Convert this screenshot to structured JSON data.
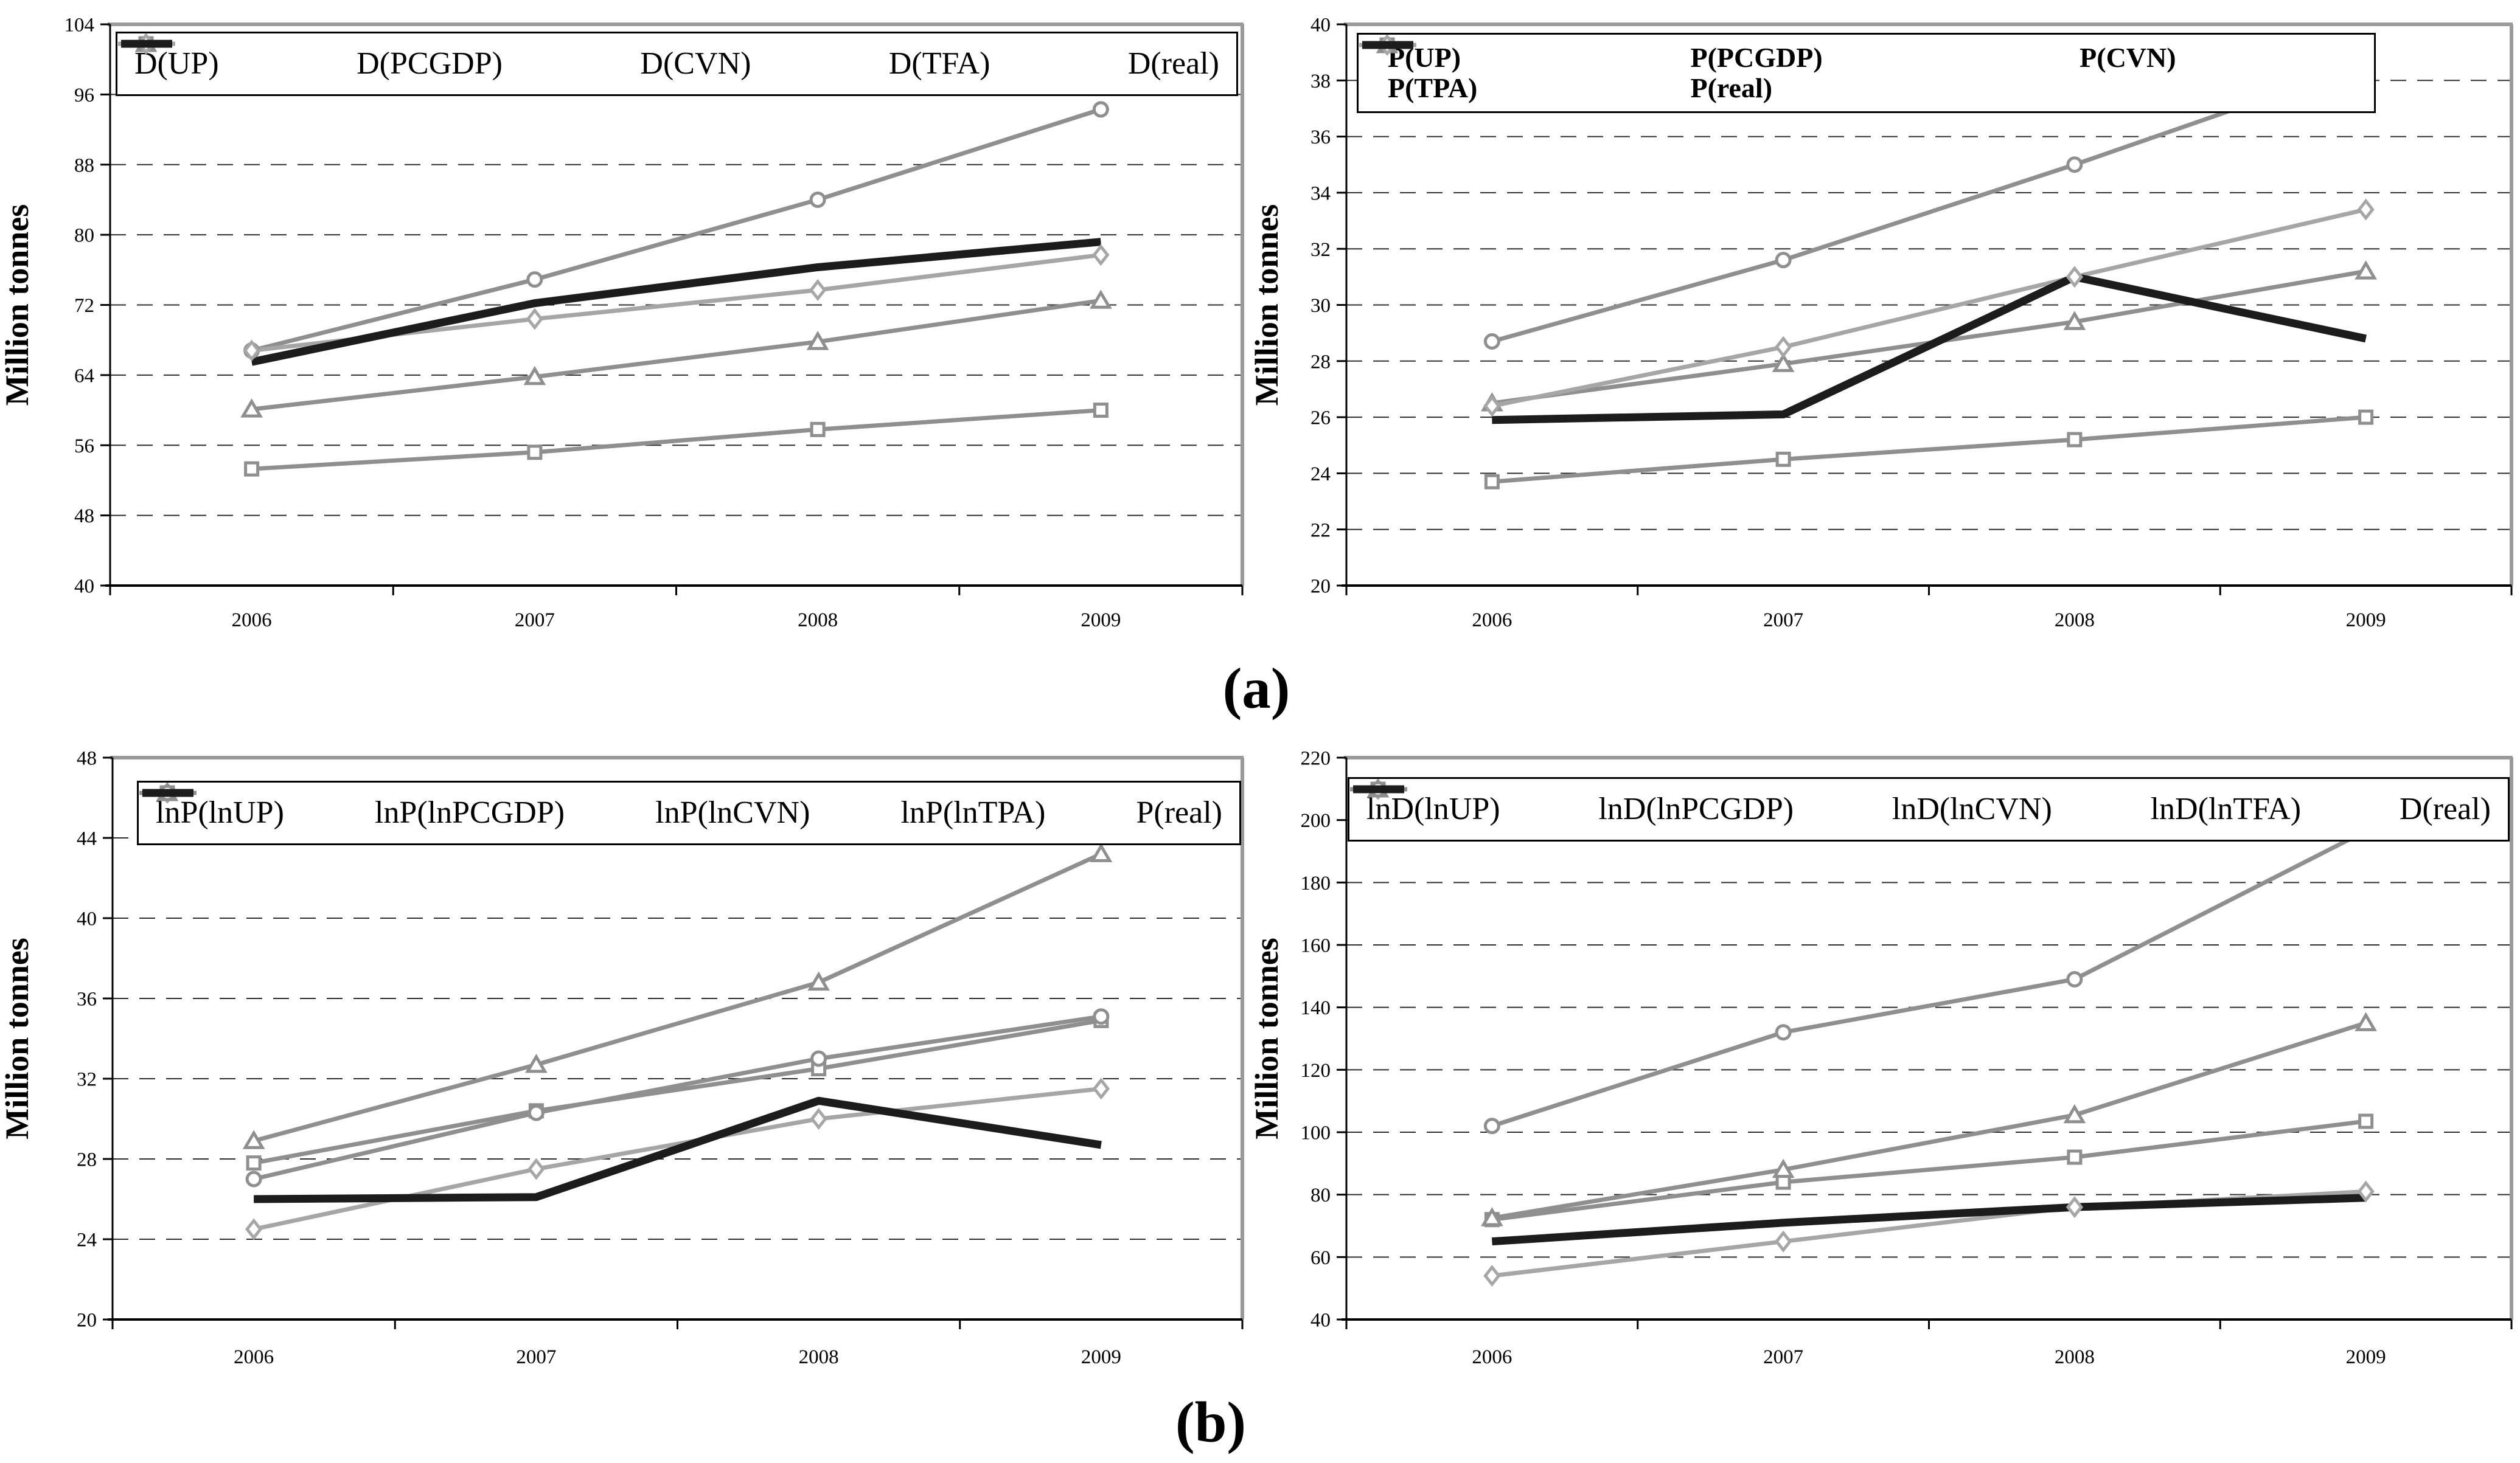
{
  "figure": {
    "caption_a": "(a)",
    "caption_b": "(b)"
  },
  "colors": {
    "series_gray": "#8f8f8f",
    "series_light_gray": "#a6a6a6",
    "series_black": "#1c1c1c",
    "gridline": "#2e2e2e",
    "axis": "#000000",
    "plot_border": "#9a9a9a",
    "legend_border": "#000000",
    "background": "#ffffff"
  },
  "chart_data": [
    {
      "id": "demand-models",
      "type": "line",
      "title": "",
      "xlabel": "",
      "ylabel": "Million tonnes",
      "x": [
        "2006",
        "2007",
        "2008",
        "2009"
      ],
      "ylim": [
        40,
        104
      ],
      "ystep": 8,
      "yticks": [
        104,
        96,
        88,
        80,
        72,
        64,
        56,
        48,
        40
      ],
      "grid": "horizontal-dashed",
      "legend_position": "top-inside",
      "legend_columns": 5,
      "legend_bold": false,
      "series": [
        {
          "name": "D(UP)",
          "marker": "square",
          "color": "#8f8f8f",
          "width": 7,
          "values": [
            53.3,
            55.2,
            57.8,
            60.0
          ]
        },
        {
          "name": "D(PCGDP)",
          "marker": "triangle",
          "color": "#8f8f8f",
          "width": 7,
          "values": [
            60.1,
            63.8,
            67.8,
            72.5
          ]
        },
        {
          "name": "D(CVN)",
          "marker": "circle",
          "color": "#8f8f8f",
          "width": 7,
          "values": [
            66.8,
            74.9,
            84.0,
            94.3
          ]
        },
        {
          "name": "D(TFA)",
          "marker": "diamond",
          "color": "#a6a6a6",
          "width": 7,
          "values": [
            66.8,
            70.4,
            73.7,
            77.7
          ]
        },
        {
          "name": "D(real)",
          "marker": "none",
          "color": "#1c1c1c",
          "width": 13,
          "values": [
            65.5,
            72.2,
            76.3,
            79.2
          ]
        }
      ]
    },
    {
      "id": "production-models",
      "type": "line",
      "title": "",
      "xlabel": "",
      "ylabel": "Million tonnes",
      "x": [
        "2006",
        "2007",
        "2008",
        "2009"
      ],
      "ylim": [
        20,
        40
      ],
      "ystep": 2,
      "yticks": [
        40,
        38,
        36,
        34,
        32,
        30,
        28,
        26,
        24,
        22,
        20
      ],
      "grid": "horizontal-dashed",
      "legend_position": "top-inside",
      "legend_columns": 3,
      "legend_bold": true,
      "series": [
        {
          "name": "P(UP)",
          "marker": "square",
          "color": "#8f8f8f",
          "width": 7,
          "values": [
            23.7,
            24.5,
            25.2,
            26.0
          ]
        },
        {
          "name": "P(PCGDP)",
          "marker": "triangle",
          "color": "#8f8f8f",
          "width": 7,
          "values": [
            26.5,
            27.9,
            29.4,
            31.2
          ]
        },
        {
          "name": "P(CVN)",
          "marker": "circle",
          "color": "#8f8f8f",
          "width": 7,
          "values": [
            28.7,
            31.6,
            35.0,
            38.6
          ]
        },
        {
          "name": "P(TPA)",
          "marker": "diamond",
          "color": "#a6a6a6",
          "width": 7,
          "values": [
            26.4,
            28.5,
            31.0,
            33.4
          ]
        },
        {
          "name": "P(real)",
          "marker": "none",
          "color": "#1c1c1c",
          "width": 13,
          "values": [
            25.9,
            26.1,
            31.0,
            28.8
          ]
        }
      ]
    },
    {
      "id": "lnp-models",
      "type": "line",
      "title": "",
      "xlabel": "",
      "ylabel": "Million tonnes",
      "x": [
        "2006",
        "2007",
        "2008",
        "2009"
      ],
      "ylim": [
        20,
        48
      ],
      "ystep": 4,
      "yticks": [
        48,
        44,
        40,
        36,
        32,
        28,
        24,
        20
      ],
      "grid": "horizontal-dashed",
      "legend_position": "top-inside",
      "legend_columns": 5,
      "legend_bold": false,
      "series": [
        {
          "name": "lnP(lnUP)",
          "marker": "square",
          "color": "#8f8f8f",
          "width": 7,
          "values": [
            27.8,
            30.4,
            32.5,
            34.9
          ]
        },
        {
          "name": "lnP(lnPCGDP)",
          "marker": "diamond",
          "color": "#a6a6a6",
          "width": 7,
          "values": [
            24.5,
            27.5,
            30.0,
            31.5
          ]
        },
        {
          "name": "lnP(lnCVN)",
          "marker": "triangle",
          "color": "#8f8f8f",
          "width": 7,
          "values": [
            28.9,
            32.7,
            36.8,
            43.2
          ]
        },
        {
          "name": "lnP(lnTPA)",
          "marker": "circle",
          "color": "#8f8f8f",
          "width": 7,
          "values": [
            27.0,
            30.3,
            33.0,
            35.1
          ]
        },
        {
          "name": "P(real)",
          "marker": "none",
          "color": "#1c1c1c",
          "width": 13,
          "values": [
            26.0,
            26.1,
            30.9,
            28.7
          ]
        }
      ]
    },
    {
      "id": "lnd-models",
      "type": "line",
      "title": "",
      "xlabel": "",
      "ylabel": "Million tonnes",
      "x": [
        "2006",
        "2007",
        "2008",
        "2009"
      ],
      "ylim": [
        40,
        220
      ],
      "ystep": 20,
      "yticks": [
        220,
        200,
        180,
        160,
        140,
        120,
        100,
        80,
        60,
        40
      ],
      "grid": "horizontal-dashed",
      "legend_position": "top-inside",
      "legend_columns": 5,
      "legend_bold": false,
      "series": [
        {
          "name": "lnD(lnUP)",
          "marker": "square",
          "color": "#8f8f8f",
          "width": 7,
          "values": [
            72.0,
            84.0,
            92.0,
            103.5
          ]
        },
        {
          "name": "lnD(lnPCGDP)",
          "marker": "diamond",
          "color": "#a6a6a6",
          "width": 7,
          "values": [
            54.0,
            65.0,
            76.0,
            81.0
          ]
        },
        {
          "name": "lnD(lnCVN)",
          "marker": "triangle",
          "color": "#8f8f8f",
          "width": 7,
          "values": [
            72.5,
            88.0,
            105.5,
            135.0
          ]
        },
        {
          "name": "lnD(lnTFA)",
          "marker": "circle",
          "color": "#8f8f8f",
          "width": 7,
          "values": [
            102.0,
            132.0,
            149.0,
            196.5
          ]
        },
        {
          "name": "D(real)",
          "marker": "none",
          "color": "#1c1c1c",
          "width": 13,
          "values": [
            65.0,
            71.0,
            76.0,
            79.0
          ]
        }
      ]
    }
  ]
}
